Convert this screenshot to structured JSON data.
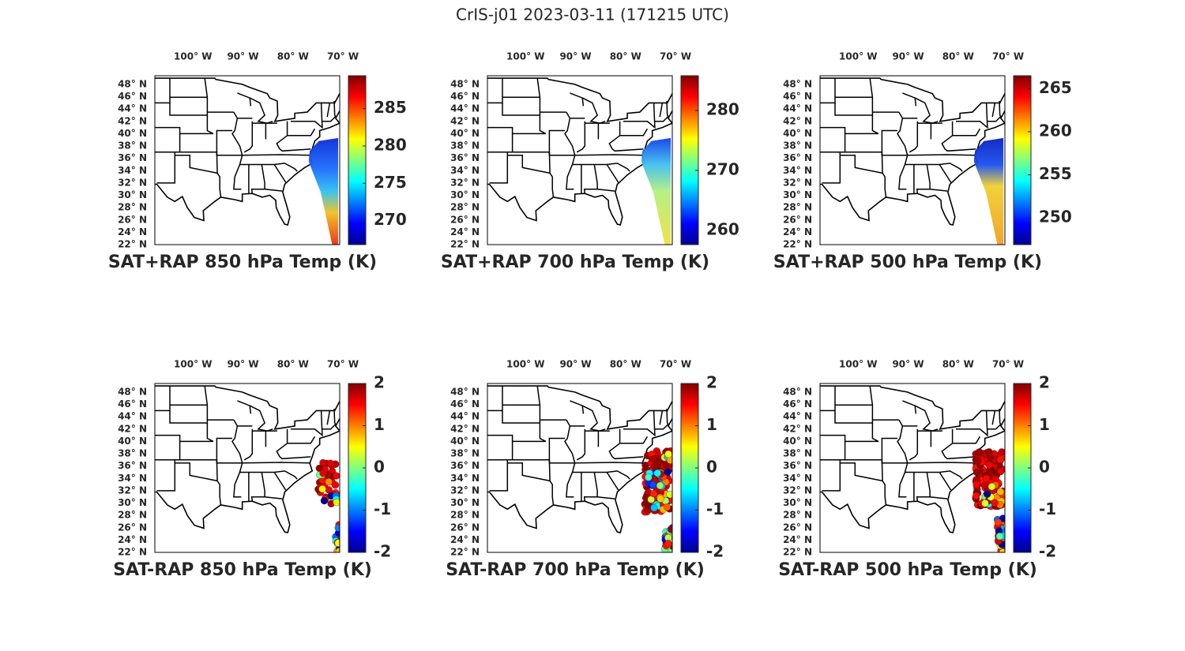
{
  "title": "CrIS-j01 2023-03-11 (171215 UTC)",
  "panels": [
    {
      "title": "SAT+RAP 850 hPa Temp (K)",
      "lonlim": [
        -107,
        -70
      ],
      "latlim": [
        22,
        49.4
      ],
      "lon_ticks": [
        {
          "value": -100,
          "label": "100° W"
        },
        {
          "value": -90,
          "label": "90° W"
        },
        {
          "value": -80,
          "label": "80° W"
        },
        {
          "value": -70,
          "label": "70° W"
        }
      ],
      "lat_ticks": [
        {
          "value": 48,
          "label": "48° N"
        },
        {
          "value": 46,
          "label": "46° N"
        },
        {
          "value": 44,
          "label": "44° N"
        },
        {
          "value": 42,
          "label": "42° N"
        },
        {
          "value": 40,
          "label": "40° N"
        },
        {
          "value": 38,
          "label": "38° N"
        },
        {
          "value": 36,
          "label": "36° N"
        },
        {
          "value": 34,
          "label": "34° N"
        },
        {
          "value": 32,
          "label": "32° N"
        },
        {
          "value": 30,
          "label": "30° N"
        },
        {
          "value": 28,
          "label": "28° N"
        },
        {
          "value": 26,
          "label": "26° N"
        },
        {
          "value": 24,
          "label": "24° N"
        },
        {
          "value": 22,
          "label": "22° N"
        }
      ],
      "colorbar": {
        "lim": [
          266.8,
          289.4
        ],
        "ticks": [
          270,
          275,
          280,
          285
        ]
      }
    },
    {
      "title": "SAT+RAP 700 hPa Temp (K)",
      "lonlim": [
        -107,
        -70
      ],
      "latlim": [
        22,
        49.4
      ],
      "lon_ticks": [
        {
          "value": -100,
          "label": "100° W"
        },
        {
          "value": -90,
          "label": "90° W"
        },
        {
          "value": -80,
          "label": "80° W"
        },
        {
          "value": -70,
          "label": "70° W"
        }
      ],
      "lat_ticks": [
        {
          "value": 48,
          "label": "48° N"
        },
        {
          "value": 46,
          "label": "46° N"
        },
        {
          "value": 44,
          "label": "44° N"
        },
        {
          "value": 42,
          "label": "42° N"
        },
        {
          "value": 40,
          "label": "40° N"
        },
        {
          "value": 38,
          "label": "38° N"
        },
        {
          "value": 36,
          "label": "36° N"
        },
        {
          "value": 34,
          "label": "34° N"
        },
        {
          "value": 32,
          "label": "32° N"
        },
        {
          "value": 30,
          "label": "30° N"
        },
        {
          "value": 28,
          "label": "28° N"
        },
        {
          "value": 26,
          "label": "26° N"
        },
        {
          "value": 24,
          "label": "24° N"
        },
        {
          "value": 22,
          "label": "22° N"
        }
      ],
      "colorbar": {
        "lim": [
          257.6,
          285.8
        ],
        "ticks": [
          260,
          270,
          280
        ]
      }
    },
    {
      "title": "SAT+RAP 500 hPa Temp (K)",
      "lonlim": [
        -107,
        -70
      ],
      "latlim": [
        22,
        49.4
      ],
      "lon_ticks": [
        {
          "value": -100,
          "label": "100° W"
        },
        {
          "value": -90,
          "label": "90° W"
        },
        {
          "value": -80,
          "label": "80° W"
        },
        {
          "value": -70,
          "label": "70° W"
        }
      ],
      "lat_ticks": [
        {
          "value": 48,
          "label": "48° N"
        },
        {
          "value": 46,
          "label": "46° N"
        },
        {
          "value": 44,
          "label": "44° N"
        },
        {
          "value": 42,
          "label": "42° N"
        },
        {
          "value": 40,
          "label": "40° N"
        },
        {
          "value": 38,
          "label": "38° N"
        },
        {
          "value": 36,
          "label": "36° N"
        },
        {
          "value": 34,
          "label": "34° N"
        },
        {
          "value": 32,
          "label": "32° N"
        },
        {
          "value": 30,
          "label": "30° N"
        },
        {
          "value": 28,
          "label": "28° N"
        },
        {
          "value": 26,
          "label": "26° N"
        },
        {
          "value": 24,
          "label": "24° N"
        },
        {
          "value": 22,
          "label": "22° N"
        }
      ],
      "colorbar": {
        "lim": [
          246.9,
          266.5
        ],
        "ticks": [
          250,
          255,
          260,
          265
        ]
      }
    },
    {
      "title": "SAT-RAP 850 hPa Temp (K)",
      "lonlim": [
        -107,
        -70
      ],
      "latlim": [
        22,
        49.4
      ],
      "lon_ticks": [
        {
          "value": -100,
          "label": "100° W"
        },
        {
          "value": -90,
          "label": "90° W"
        },
        {
          "value": -80,
          "label": "80° W"
        },
        {
          "value": -70,
          "label": "70° W"
        }
      ],
      "lat_ticks": [
        {
          "value": 48,
          "label": "48° N"
        },
        {
          "value": 46,
          "label": "46° N"
        },
        {
          "value": 44,
          "label": "44° N"
        },
        {
          "value": 42,
          "label": "42° N"
        },
        {
          "value": 40,
          "label": "40° N"
        },
        {
          "value": 38,
          "label": "38° N"
        },
        {
          "value": 36,
          "label": "36° N"
        },
        {
          "value": 34,
          "label": "34° N"
        },
        {
          "value": 32,
          "label": "32° N"
        },
        {
          "value": 30,
          "label": "30° N"
        },
        {
          "value": 28,
          "label": "28° N"
        },
        {
          "value": 26,
          "label": "26° N"
        },
        {
          "value": 24,
          "label": "24° N"
        },
        {
          "value": 22,
          "label": "22° N"
        }
      ],
      "colorbar": {
        "lim": [
          -2,
          2
        ],
        "ticks": [
          -2,
          -1,
          0,
          1,
          2
        ]
      }
    },
    {
      "title": "SAT-RAP 700 hPa Temp (K)",
      "lonlim": [
        -107,
        -70
      ],
      "latlim": [
        22,
        49.4
      ],
      "lon_ticks": [
        {
          "value": -100,
          "label": "100° W"
        },
        {
          "value": -90,
          "label": "90° W"
        },
        {
          "value": -80,
          "label": "80° W"
        },
        {
          "value": -70,
          "label": "70° W"
        }
      ],
      "lat_ticks": [
        {
          "value": 48,
          "label": "48° N"
        },
        {
          "value": 46,
          "label": "46° N"
        },
        {
          "value": 44,
          "label": "44° N"
        },
        {
          "value": 42,
          "label": "42° N"
        },
        {
          "value": 40,
          "label": "40° N"
        },
        {
          "value": 38,
          "label": "38° N"
        },
        {
          "value": 36,
          "label": "36° N"
        },
        {
          "value": 34,
          "label": "34° N"
        },
        {
          "value": 32,
          "label": "32° N"
        },
        {
          "value": 30,
          "label": "30° N"
        },
        {
          "value": 28,
          "label": "28° N"
        },
        {
          "value": 26,
          "label": "26° N"
        },
        {
          "value": 24,
          "label": "24° N"
        },
        {
          "value": 22,
          "label": "22° N"
        }
      ],
      "colorbar": {
        "lim": [
          -2,
          2
        ],
        "ticks": [
          -2,
          -1,
          0,
          1,
          2
        ]
      }
    },
    {
      "title": "SAT-RAP 500 hPa Temp (K)",
      "lonlim": [
        -107,
        -70
      ],
      "latlim": [
        22,
        49.4
      ],
      "lon_ticks": [
        {
          "value": -100,
          "label": "100° W"
        },
        {
          "value": -90,
          "label": "90° W"
        },
        {
          "value": -80,
          "label": "80° W"
        },
        {
          "value": -70,
          "label": "70° W"
        }
      ],
      "lat_ticks": [
        {
          "value": 48,
          "label": "48° N"
        },
        {
          "value": 46,
          "label": "46° N"
        },
        {
          "value": 44,
          "label": "44° N"
        },
        {
          "value": 42,
          "label": "42° N"
        },
        {
          "value": 40,
          "label": "40° N"
        },
        {
          "value": 38,
          "label": "38° N"
        },
        {
          "value": 36,
          "label": "36° N"
        },
        {
          "value": 34,
          "label": "34° N"
        },
        {
          "value": 32,
          "label": "32° N"
        },
        {
          "value": 30,
          "label": "30° N"
        },
        {
          "value": 28,
          "label": "28° N"
        },
        {
          "value": 26,
          "label": "26° N"
        },
        {
          "value": 24,
          "label": "24° N"
        },
        {
          "value": 22,
          "label": "22° N"
        }
      ],
      "colorbar": {
        "lim": [
          -2,
          2
        ],
        "ticks": [
          -2,
          -1,
          0,
          1,
          2
        ]
      }
    }
  ]
}
